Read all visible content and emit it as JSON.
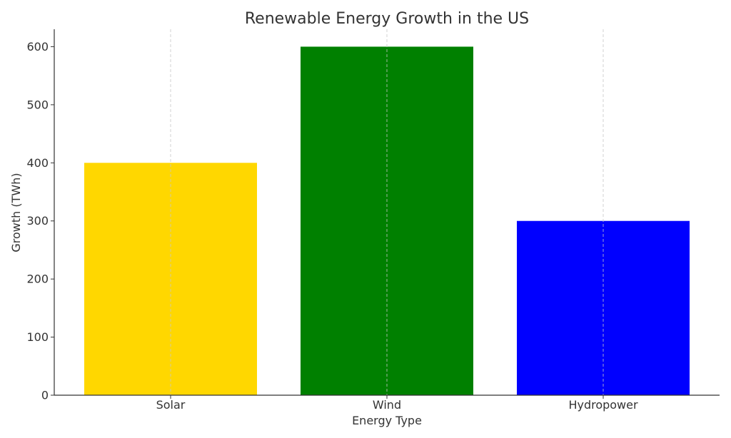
{
  "chart_data": {
    "type": "bar",
    "title": "Renewable Energy Growth in the US",
    "xlabel": "Energy Type",
    "ylabel": "Growth (TWh)",
    "categories": [
      "Solar",
      "Wind",
      "Hydropower"
    ],
    "values": [
      400,
      600,
      300
    ],
    "colors": [
      "#FFD700",
      "#008000",
      "#0000FF"
    ],
    "ylim": [
      0,
      630
    ],
    "yticks": [
      0,
      100,
      200,
      300,
      400,
      500,
      600
    ],
    "grid": "x-axis dashed"
  }
}
